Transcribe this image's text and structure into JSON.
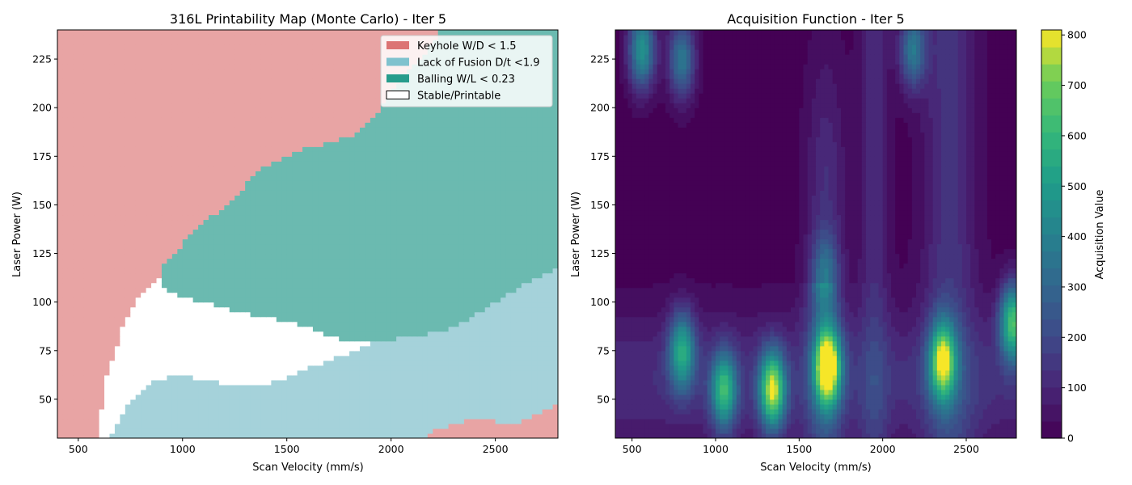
{
  "chart_data": [
    {
      "type": "heatmap",
      "title": "316L Printability Map (Monte Carlo) - Iter 5",
      "xlabel": "Scan Velocity (mm/s)",
      "ylabel": "Laser Power (W)",
      "xlim": [
        400,
        2800
      ],
      "ylim": [
        30,
        240
      ],
      "xticks": [
        500,
        1000,
        1500,
        2000,
        2500
      ],
      "yticks": [
        50,
        75,
        100,
        125,
        150,
        175,
        200,
        225
      ],
      "legend_position": "upper right",
      "grid": false,
      "legend": [
        {
          "label": "Keyhole W/D < 1.5",
          "color": "#dc7474"
        },
        {
          "label": "Lack of Fusion D/t <1.9",
          "color": "#7fc2ce"
        },
        {
          "label": "Balling W/L < 0.23",
          "color": "#279c8c"
        },
        {
          "label": "Stable/Printable",
          "color": "#ffffff"
        }
      ],
      "region_colors": {
        "keyhole": "#e8a4a4",
        "lack_of_fusion": "#a5d2da",
        "balling": "#6bbab0",
        "stable": "#ffffff"
      },
      "boundaries": {
        "keyhole_upper_velocity": [
          [
            30,
            600
          ],
          [
            41,
            605
          ],
          [
            52,
            625
          ],
          [
            64,
            640
          ],
          [
            70,
            660
          ],
          [
            76,
            685
          ],
          [
            84,
            705
          ],
          [
            90,
            725
          ],
          [
            96,
            750
          ],
          [
            102,
            785
          ],
          [
            106,
            810
          ],
          [
            108,
            850
          ],
          [
            112,
            885
          ],
          [
            120,
            915
          ],
          [
            126,
            970
          ],
          [
            130,
            1000
          ],
          [
            138,
            1060
          ],
          [
            145,
            1150
          ],
          [
            152,
            1230
          ],
          [
            160,
            1300
          ],
          [
            170,
            1400
          ],
          [
            178,
            1560
          ],
          [
            182,
            1700
          ],
          [
            186,
            1820
          ],
          [
            190,
            1870
          ],
          [
            198,
            1940
          ],
          [
            210,
            2020
          ],
          [
            222,
            2100
          ],
          [
            230,
            2180
          ],
          [
            240,
            2240
          ]
        ],
        "balling_lower_power": [
          [
            900,
            108
          ],
          [
            950,
            105
          ],
          [
            1000,
            103
          ],
          [
            1100,
            100
          ],
          [
            1200,
            97
          ],
          [
            1300,
            94
          ],
          [
            1400,
            92
          ],
          [
            1500,
            90
          ],
          [
            1600,
            87
          ],
          [
            1700,
            83
          ],
          [
            1800,
            80
          ],
          [
            1900,
            80
          ],
          [
            2000,
            81
          ],
          [
            2100,
            82
          ],
          [
            2200,
            84
          ],
          [
            2300,
            87
          ],
          [
            2400,
            93
          ],
          [
            2500,
            100
          ],
          [
            2600,
            107
          ],
          [
            2700,
            113
          ],
          [
            2800,
            117
          ]
        ],
        "lof_upper_power": [
          [
            600,
            30
          ],
          [
            650,
            30
          ],
          [
            700,
            41
          ],
          [
            750,
            48
          ],
          [
            800,
            55
          ],
          [
            850,
            59
          ],
          [
            900,
            61
          ],
          [
            1000,
            62
          ],
          [
            1100,
            60
          ],
          [
            1200,
            58
          ],
          [
            1300,
            57
          ],
          [
            1400,
            58
          ],
          [
            1500,
            61
          ],
          [
            1600,
            66
          ],
          [
            1700,
            70
          ],
          [
            1800,
            74
          ],
          [
            1900,
            79
          ],
          [
            1950,
            80
          ]
        ],
        "keyhole_lower_band": [
          [
            2150,
            30
          ],
          [
            2200,
            34
          ],
          [
            2300,
            37
          ],
          [
            2400,
            40
          ],
          [
            2500,
            39
          ],
          [
            2600,
            37
          ],
          [
            2700,
            42
          ],
          [
            2800,
            48
          ]
        ]
      }
    },
    {
      "type": "heatmap",
      "title": "Acquisition Function - Iter 5",
      "xlabel": "Scan Velocity (mm/s)",
      "ylabel": "Laser Power (W)",
      "xlim": [
        400,
        2800
      ],
      "ylim": [
        30,
        240
      ],
      "xticks": [
        500,
        1000,
        1500,
        2000,
        2500
      ],
      "yticks": [
        50,
        75,
        100,
        125,
        150,
        175,
        200,
        225
      ],
      "colorbar": {
        "label": "Acquisition Value",
        "min": 0,
        "max": 810,
        "ticks": [
          0,
          100,
          200,
          300,
          400,
          500,
          600,
          700,
          800
        ],
        "colormap": "viridis"
      },
      "peaks": [
        {
          "x": 1670,
          "y": 67,
          "value": 810
        },
        {
          "x": 1340,
          "y": 55,
          "value": 700
        },
        {
          "x": 2360,
          "y": 70,
          "value": 650
        },
        {
          "x": 2780,
          "y": 90,
          "value": 600
        },
        {
          "x": 1050,
          "y": 55,
          "value": 520
        },
        {
          "x": 800,
          "y": 75,
          "value": 480
        },
        {
          "x": 1650,
          "y": 115,
          "value": 300
        },
        {
          "x": 560,
          "y": 230,
          "value": 480
        },
        {
          "x": 800,
          "y": 225,
          "value": 420
        },
        {
          "x": 2180,
          "y": 230,
          "value": 350
        }
      ]
    }
  ]
}
